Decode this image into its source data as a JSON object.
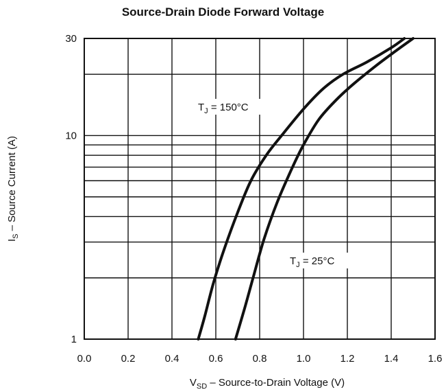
{
  "chart_data": {
    "type": "line",
    "title": "Source-Drain Diode Forward Voltage",
    "xlabel": {
      "main": "V",
      "sub": "SD",
      "rest": " –  Source-to-Drain Voltage (V)"
    },
    "ylabel": {
      "main": "I",
      "sub": "S",
      "rest": "  –  Source Current (A)"
    },
    "x_scale": "linear",
    "y_scale": "log",
    "xlim": [
      0.0,
      1.6
    ],
    "ylim": [
      1,
      30
    ],
    "x_ticks": [
      "0.0",
      "0.2",
      "0.4",
      "0.6",
      "0.8",
      "1.0",
      "1.2",
      "1.4",
      "1.6"
    ],
    "y_ticks": [
      {
        "value": 1,
        "label": "1"
      },
      {
        "value": 10,
        "label": "10"
      },
      {
        "value": 30,
        "label": "30"
      }
    ],
    "grid": true,
    "series": [
      {
        "name": "T_J = 150°C",
        "label": {
          "main": "T",
          "sub": "J",
          "rest": " = 150°C"
        },
        "x": [
          0.52,
          0.55,
          0.59,
          0.64,
          0.7,
          0.76,
          0.83,
          0.9,
          1.0,
          1.09,
          1.18,
          1.29,
          1.4,
          1.46
        ],
        "y": [
          1.0,
          1.3,
          1.9,
          2.8,
          4.2,
          6.0,
          8.0,
          10.0,
          13.5,
          17.0,
          20.0,
          23.0,
          27.0,
          30.0
        ]
      },
      {
        "name": "T_J = 25°C",
        "label": {
          "main": "T",
          "sub": "J",
          "rest": " = 25°C"
        },
        "x": [
          0.69,
          0.73,
          0.77,
          0.82,
          0.88,
          0.95,
          1.0,
          1.07,
          1.15,
          1.23,
          1.33,
          1.42,
          1.5
        ],
        "y": [
          1.0,
          1.4,
          2.0,
          3.1,
          4.7,
          7.0,
          9.0,
          12.0,
          15.0,
          18.0,
          22.0,
          26.0,
          30.0
        ]
      }
    ]
  }
}
